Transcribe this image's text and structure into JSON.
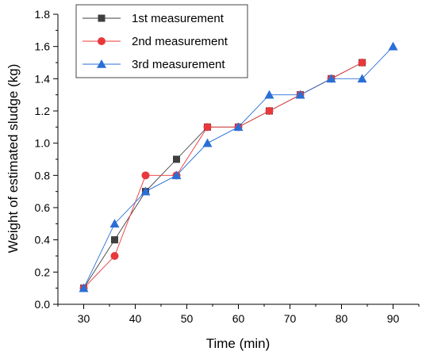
{
  "chart_data": {
    "type": "line",
    "xlabel": "Time (min)",
    "ylabel": "Weight of estimated sludge (kg)",
    "xlim": [
      25,
      95
    ],
    "ylim": [
      0.0,
      1.8
    ],
    "x_ticks": [
      30,
      40,
      50,
      60,
      70,
      80,
      90
    ],
    "y_ticks": [
      0.0,
      0.2,
      0.4,
      0.6,
      0.8,
      1.0,
      1.2,
      1.4,
      1.6,
      1.8
    ],
    "x_tick_labels": [
      "30",
      "40",
      "50",
      "60",
      "70",
      "80",
      "90"
    ],
    "y_tick_labels": [
      "0.0",
      "0.2",
      "0.4",
      "0.6",
      "0.8",
      "1.0",
      "1.2",
      "1.4",
      "1.6",
      "1.8"
    ],
    "grid": false,
    "legend_position": "top-left",
    "series": [
      {
        "name": "1st  measurement",
        "marker": "square",
        "color": "#3f3f3f",
        "x": [
          30,
          36,
          42,
          48,
          54,
          60,
          66,
          72,
          78,
          84
        ],
        "y": [
          0.1,
          0.4,
          0.7,
          0.9,
          1.1,
          1.1,
          1.2,
          1.3,
          1.4,
          1.5
        ]
      },
      {
        "name": "2nd measurement",
        "marker": "circle",
        "color": "#e8383b",
        "x": [
          30,
          36,
          42,
          48,
          54,
          60,
          66,
          72,
          78,
          84
        ],
        "y": [
          0.1,
          0.3,
          0.8,
          0.8,
          1.1,
          1.1,
          1.2,
          1.3,
          1.4,
          1.5
        ]
      },
      {
        "name": "3rd  measurement",
        "marker": "triangle",
        "color": "#2a6fd6",
        "x": [
          30,
          36,
          42,
          48,
          54,
          60,
          66,
          72,
          78,
          84,
          90
        ],
        "y": [
          0.1,
          0.5,
          0.7,
          0.8,
          1.0,
          1.1,
          1.3,
          1.3,
          1.4,
          1.4,
          1.6
        ]
      }
    ]
  }
}
